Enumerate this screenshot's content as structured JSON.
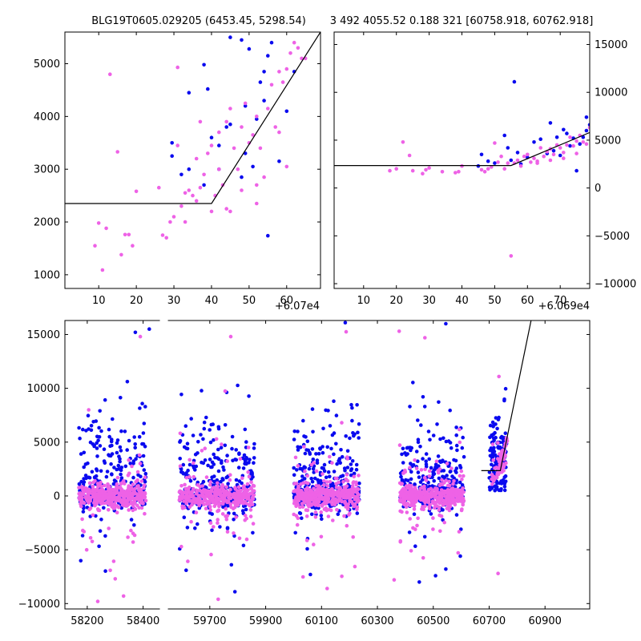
{
  "chart_data": [
    {
      "type": "scatter",
      "title": "BLG19T0605.029205 (6453.45, 5298.54)",
      "x_offset_label": "+6.07e4",
      "xlim": [
        60701,
        60769
      ],
      "ylim": [
        740,
        5600
      ],
      "x_ticks": [
        10,
        20,
        30,
        40,
        50,
        60
      ],
      "y_ticks": [
        1000,
        2000,
        3000,
        4000,
        5000
      ],
      "model_line": [
        [
          60701,
          2350
        ],
        [
          60740,
          2350
        ],
        [
          60769,
          5600
        ]
      ],
      "series": [
        {
          "color": "#0a0aef",
          "points": [
            [
              60729.5,
              3250
            ],
            [
              60729.5,
              3500
            ],
            [
              60732,
              2900
            ],
            [
              60734,
              3000
            ],
            [
              60734,
              4450
            ],
            [
              60738,
              4980
            ],
            [
              60739,
              4520
            ],
            [
              60740,
              3600
            ],
            [
              60742,
              3450
            ],
            [
              60744,
              3800
            ],
            [
              60745,
              3850
            ],
            [
              60748,
              2850
            ],
            [
              60749,
              3300
            ],
            [
              60751,
              3050
            ],
            [
              60752,
              3950
            ],
            [
              60753,
              4650
            ],
            [
              60754,
              4850
            ],
            [
              60755,
              5150
            ],
            [
              60756,
              5400
            ],
            [
              60755,
              1740
            ],
            [
              60758,
              3150
            ],
            [
              60760,
              4100
            ],
            [
              60762,
              4850
            ],
            [
              60745,
              5500
            ],
            [
              60748,
              5450
            ],
            [
              60750,
              5280
            ],
            [
              60738,
              2700
            ],
            [
              60742,
              3000
            ],
            [
              60749,
              4200
            ],
            [
              60754,
              4300
            ]
          ]
        },
        {
          "color": "#ee62e6",
          "points": [
            [
              60709,
              1550
            ],
            [
              60710,
              1980
            ],
            [
              60711,
              1090
            ],
            [
              60712,
              1880
            ],
            [
              60713,
              4800
            ],
            [
              60715,
              3330
            ],
            [
              60716,
              1380
            ],
            [
              60717,
              1760
            ],
            [
              60718,
              1760
            ],
            [
              60719,
              1550
            ],
            [
              60720,
              2580
            ],
            [
              60726,
              2650
            ],
            [
              60727,
              1750
            ],
            [
              60728,
              1700
            ],
            [
              60729,
              2000
            ],
            [
              60730,
              2100
            ],
            [
              60731,
              3450
            ],
            [
              60731,
              4930
            ],
            [
              60732,
              2300
            ],
            [
              60733,
              2000
            ],
            [
              60734,
              2600
            ],
            [
              60735,
              2500
            ],
            [
              60736,
              2400
            ],
            [
              60736,
              3200
            ],
            [
              60737,
              3900
            ],
            [
              60738,
              2900
            ],
            [
              60739,
              3300
            ],
            [
              60740,
              3450
            ],
            [
              60740,
              2200
            ],
            [
              60741,
              2500
            ],
            [
              60742,
              3000
            ],
            [
              60742,
              3700
            ],
            [
              60743,
              2700
            ],
            [
              60744,
              2250
            ],
            [
              60745,
              2200
            ],
            [
              60745,
              4150
            ],
            [
              60746,
              3400
            ],
            [
              60747,
              3000
            ],
            [
              60748,
              2600
            ],
            [
              60748,
              3800
            ],
            [
              60749,
              4250
            ],
            [
              60750,
              3500
            ],
            [
              60751,
              3650
            ],
            [
              60752,
              2700
            ],
            [
              60752,
              4000
            ],
            [
              60753,
              3400
            ],
            [
              60754,
              2850
            ],
            [
              60755,
              4150
            ],
            [
              60756,
              4600
            ],
            [
              60757,
              3800
            ],
            [
              60758,
              4850
            ],
            [
              60759,
              4650
            ],
            [
              60760,
              4900
            ],
            [
              60760,
              3050
            ],
            [
              60761,
              5200
            ],
            [
              60762,
              5400
            ],
            [
              60763,
              5300
            ],
            [
              60764,
              5100
            ],
            [
              60765,
              5100
            ],
            [
              60752,
              2350
            ],
            [
              60744,
              3900
            ],
            [
              60737,
              2650
            ],
            [
              60733,
              2550
            ],
            [
              60758,
              3700
            ]
          ]
        }
      ]
    },
    {
      "type": "scatter",
      "title": "3 492 4055.52 0.188 321 [60758.918, 60762.918]",
      "x_offset_label": "+6.069e4",
      "xlim": [
        60691,
        60769
      ],
      "ylim": [
        -10500,
        16300
      ],
      "x_ticks": [
        10,
        20,
        30,
        40,
        50,
        60,
        70
      ],
      "y_ticks": [
        -10000,
        -5000,
        0,
        5000,
        10000,
        15000
      ],
      "model_line": [
        [
          60691,
          2350
        ],
        [
          60745,
          2350
        ],
        [
          60769,
          5800
        ]
      ],
      "series": [
        {
          "color": "#0a0aef",
          "points": [
            [
              60735,
              2300
            ],
            [
              60736,
              3500
            ],
            [
              60738,
              2800
            ],
            [
              60740,
              2600
            ],
            [
              60743,
              5500
            ],
            [
              60744,
              4200
            ],
            [
              60745,
              2900
            ],
            [
              60746,
              11100
            ],
            [
              60747,
              3700
            ],
            [
              60748,
              2500
            ],
            [
              60750,
              3200
            ],
            [
              60752,
              4800
            ],
            [
              60754,
              5100
            ],
            [
              60756,
              3600
            ],
            [
              60758,
              3900
            ],
            [
              60759,
              5300
            ],
            [
              60760,
              3400
            ],
            [
              60762,
              5700
            ],
            [
              60763,
              4400
            ],
            [
              60764,
              5200
            ],
            [
              60765,
              1800
            ],
            [
              60766,
              4600
            ],
            [
              60767,
              5300
            ],
            [
              60768,
              6000
            ],
            [
              60769,
              6600
            ],
            [
              60770,
              7800
            ],
            [
              60771,
              8800
            ],
            [
              60772,
              6200
            ],
            [
              60773,
              5000
            ],
            [
              60768,
              7400
            ],
            [
              60757,
              6800
            ],
            [
              60761,
              6100
            ]
          ]
        },
        {
          "color": "#ee62e6",
          "points": [
            [
              60708,
              1800
            ],
            [
              60710,
              2000
            ],
            [
              60712,
              4800
            ],
            [
              60714,
              3400
            ],
            [
              60715,
              1800
            ],
            [
              60718,
              1500
            ],
            [
              60719,
              1900
            ],
            [
              60720,
              2100
            ],
            [
              60724,
              1700
            ],
            [
              60728,
              1600
            ],
            [
              60729,
              1700
            ],
            [
              60730,
              2300
            ],
            [
              60736,
              1900
            ],
            [
              60737,
              1700
            ],
            [
              60738,
              2000
            ],
            [
              60739,
              2200
            ],
            [
              60740,
              4700
            ],
            [
              60741,
              2700
            ],
            [
              60742,
              3300
            ],
            [
              60743,
              2000
            ],
            [
              60744,
              2600
            ],
            [
              60745,
              -7100
            ],
            [
              60746,
              2600
            ],
            [
              60747,
              2900
            ],
            [
              60748,
              2300
            ],
            [
              60749,
              3300
            ],
            [
              60750,
              3500
            ],
            [
              60751,
              2700
            ],
            [
              60752,
              3100
            ],
            [
              60753,
              2800
            ],
            [
              60754,
              4200
            ],
            [
              60755,
              3300
            ],
            [
              60756,
              3800
            ],
            [
              60757,
              4100
            ],
            [
              60758,
              3500
            ],
            [
              60759,
              4500
            ],
            [
              60760,
              4200
            ],
            [
              60761,
              3700
            ],
            [
              60762,
              4500
            ],
            [
              60763,
              5300
            ],
            [
              60764,
              4400
            ],
            [
              60765,
              4900
            ],
            [
              60766,
              5500
            ],
            [
              60767,
              4800
            ],
            [
              60768,
              4600
            ],
            [
              60769,
              6300
            ],
            [
              60770,
              5000
            ],
            [
              60771,
              6800
            ],
            [
              60772,
              5300
            ],
            [
              60773,
              6600
            ],
            [
              60774,
              4900
            ],
            [
              60753,
              2600
            ],
            [
              60757,
              2900
            ],
            [
              60761,
              3100
            ],
            [
              60765,
              3600
            ]
          ]
        }
      ]
    },
    {
      "type": "scatter",
      "title": "",
      "xlim": [
        58120,
        61060
      ],
      "ylim": [
        -10500,
        16300
      ],
      "x_ticks": [
        58200,
        58400,
        59700,
        59900,
        60100,
        60300,
        60500,
        60700,
        60900
      ],
      "y_ticks": [
        -10000,
        -5000,
        0,
        5000,
        10000,
        15000
      ],
      "axis_break": [
        58460,
        59550
      ],
      "seasons": [
        [
          58170,
          58410
        ],
        [
          59590,
          59860
        ],
        [
          60000,
          60235
        ],
        [
          60380,
          60610
        ],
        [
          60700,
          60760
        ]
      ],
      "model_line": [
        [
          60672,
          2350
        ],
        [
          60740,
          2350
        ],
        [
          60850,
          16300
        ]
      ],
      "series": [
        {
          "color": "#0a0aef",
          "points": []
        },
        {
          "color": "#ee62e6",
          "points": []
        }
      ],
      "notable_points": [
        [
          60378,
          15300,
          1
        ],
        [
          58372,
          15200,
          0
        ],
        [
          58422,
          15500,
          0
        ],
        [
          60185,
          16100,
          0
        ],
        [
          60188,
          15250,
          1
        ],
        [
          60545,
          16000,
          0
        ],
        [
          58390,
          14800,
          1
        ],
        [
          60470,
          14700,
          1
        ],
        [
          59775,
          14800,
          1
        ],
        [
          60735,
          11100,
          1
        ],
        [
          60732,
          -7200,
          1
        ],
        [
          58212,
          -3900,
          1
        ],
        [
          59730,
          -9600,
          1
        ],
        [
          59790,
          -8900,
          0
        ],
        [
          60545,
          -6800,
          0
        ],
        [
          60360,
          -7800,
          1
        ],
        [
          60060,
          -7300,
          0
        ],
        [
          60120,
          -8600,
          1
        ],
        [
          58300,
          -7700,
          1
        ],
        [
          58330,
          -9300,
          1
        ],
        [
          60450,
          -8000,
          0
        ]
      ]
    }
  ]
}
